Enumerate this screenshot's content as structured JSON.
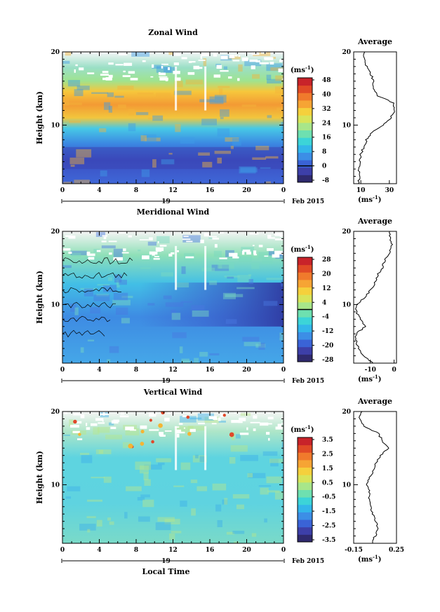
{
  "figure": {
    "date_label": "Feb 2015",
    "day_label": "19",
    "local_time_label": "Local Time",
    "average_title": "Average",
    "unit_label": "(ms",
    "unit_sup": "-1",
    "colors": {
      "scale": [
        "#2f2a6e",
        "#3d3fa8",
        "#3a63d6",
        "#3c8ee6",
        "#33b6ea",
        "#3cd4d8",
        "#6ee0b0",
        "#a8e68a",
        "#d8e45a",
        "#f5d03c",
        "#f6a434",
        "#f07a2c",
        "#e04a26",
        "#c8232a"
      ]
    }
  },
  "chart_data": [
    {
      "type": "heatmap",
      "title": "Zonal Wind",
      "xlabel": "",
      "ylabel": "Height (km)",
      "xlim": [
        0,
        24
      ],
      "ylim": [
        2,
        20
      ],
      "x_ticks": [
        "0",
        "4",
        "8",
        "12",
        "16",
        "20",
        "0"
      ],
      "y_ticks": [
        "20",
        "10"
      ],
      "colorbar": {
        "min": -8,
        "max": 48,
        "ticks": [
          "48",
          "40",
          "32",
          "24",
          "16",
          "8",
          "0",
          "-8"
        ],
        "zero_line": 0
      },
      "profile": {
        "title": "Average",
        "xlim": [
          5,
          35
        ],
        "x_ticks": [
          "10",
          "30"
        ],
        "y_ticks": [
          "20",
          "10"
        ],
        "heights": [
          2,
          3,
          4,
          5,
          6,
          7,
          8,
          9,
          10,
          11,
          12,
          13,
          14,
          15,
          16,
          17,
          18,
          19,
          20
        ],
        "values": [
          8,
          9,
          8.5,
          9.5,
          10,
          12,
          14,
          18,
          26,
          31,
          34,
          33,
          22,
          19,
          19,
          17,
          14,
          13,
          12
        ]
      }
    },
    {
      "type": "heatmap",
      "title": "Meridional Wind",
      "xlabel": "",
      "ylabel": "Height (km)",
      "xlim": [
        0,
        24
      ],
      "ylim": [
        2,
        20
      ],
      "x_ticks": [
        "0",
        "4",
        "8",
        "12",
        "16",
        "20",
        "0"
      ],
      "y_ticks": [
        "20",
        "10"
      ],
      "colorbar": {
        "min": -28,
        "max": 28,
        "ticks": [
          "28",
          "20",
          "12",
          "4",
          "-4",
          "-12",
          "-20",
          "-28"
        ],
        "zero_line": 0
      },
      "profile": {
        "title": "Average",
        "xlim": [
          -17,
          1
        ],
        "x_ticks": [
          "-10",
          "0"
        ],
        "y_ticks": [
          "20",
          "10"
        ],
        "heights": [
          2,
          3,
          4,
          5,
          6,
          7,
          8,
          9,
          10,
          11,
          12,
          13,
          14,
          15,
          16,
          17,
          18,
          19,
          20
        ],
        "values": [
          -9,
          -13,
          -15,
          -16,
          -16,
          -12,
          -14,
          -16,
          -16,
          -12,
          -10,
          -8,
          -7,
          -5,
          -4,
          -2,
          -1,
          -1.5,
          -2
        ]
      }
    },
    {
      "type": "heatmap",
      "title": "Vertical Wind",
      "xlabel": "Local Time",
      "ylabel": "Height (km)",
      "xlim": [
        0,
        24
      ],
      "ylim": [
        2,
        20
      ],
      "x_ticks": [
        "0",
        "4",
        "8",
        "12",
        "16",
        "20",
        "0"
      ],
      "y_ticks": [
        "20",
        "10"
      ],
      "colorbar": {
        "min": -3.5,
        "max": 3.5,
        "ticks": [
          "3.5",
          "2.5",
          "1.5",
          "0.5",
          "-0.5",
          "-1.5",
          "-2.5",
          "-3.5"
        ],
        "zero_line": null
      },
      "profile": {
        "title": "Average",
        "xlim": [
          -0.15,
          0.25
        ],
        "x_ticks": [
          "-0.15",
          "0.25"
        ],
        "y_ticks": [
          "20",
          "10"
        ],
        "heights": [
          2,
          3,
          4,
          5,
          6,
          7,
          8,
          9,
          10,
          11,
          12,
          13,
          14,
          15,
          16,
          17,
          18,
          19,
          20
        ],
        "values": [
          0.02,
          0.05,
          0.08,
          0.06,
          0.03,
          0.01,
          -0.01,
          0.0,
          -0.03,
          0.0,
          0.04,
          0.06,
          0.1,
          0.17,
          0.12,
          0.08,
          -0.05,
          -0.1,
          -0.08
        ]
      }
    }
  ]
}
